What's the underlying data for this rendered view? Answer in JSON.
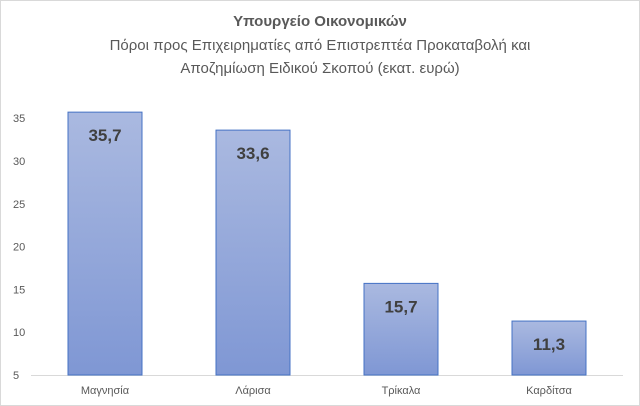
{
  "chart_data": {
    "type": "bar",
    "title": "Υπουργείο Οικονομικών",
    "subtitle_lines": [
      "Πόροι προς Επιχειρηματίες από Επιστρεπτέα Προκαταβολή και",
      "Αποζημίωση Ειδικού Σκοπού (εκατ. ευρώ)"
    ],
    "categories": [
      "Μαγνησία",
      "Λάρισα",
      "Τρίκαλα",
      "Καρδίτσα"
    ],
    "values": [
      35.7,
      33.6,
      15.7,
      11.3
    ],
    "data_labels": [
      "35,7",
      "33,6",
      "15,7",
      "11,3"
    ],
    "yticks": [
      5,
      10,
      15,
      20,
      25,
      30,
      35
    ],
    "ylim": [
      5,
      37
    ],
    "grid": false,
    "legend": "none",
    "colors": {
      "bar_top": "#aab9e0",
      "bar_bottom": "#7f97d4",
      "bar_border": "#4472c4",
      "axis": "#d9d9d9",
      "text": "#595959",
      "label": "#404040"
    }
  }
}
